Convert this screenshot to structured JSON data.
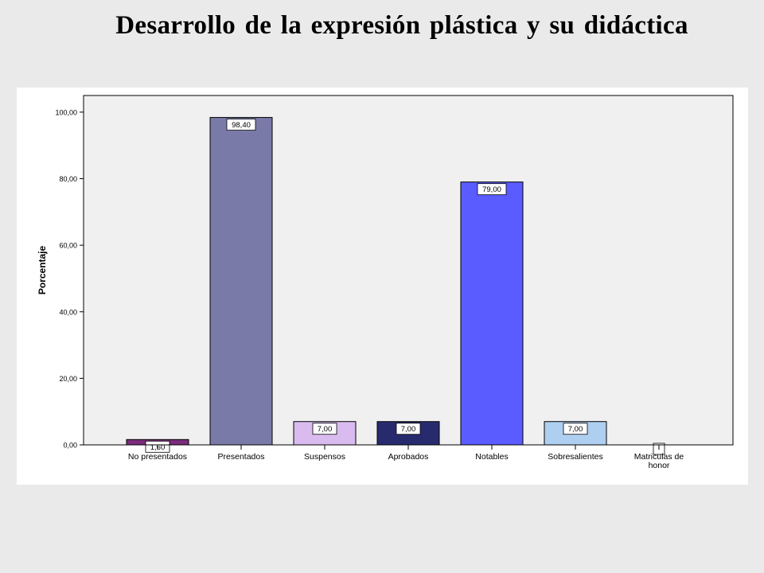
{
  "slide": {
    "title": "Desarrollo de la expresión plástica y su didáctica"
  },
  "chart_data": {
    "type": "bar",
    "title": "Desarrollo de la expresión plástica y su didáctica",
    "xlabel": "",
    "ylabel": "Porcentaje",
    "ylim": [
      0,
      105
    ],
    "yticks": [
      0,
      20,
      40,
      60,
      80,
      100
    ],
    "ytick_labels": [
      "0,00",
      "20,00",
      "40,00",
      "60,00",
      "80,00",
      "100,00"
    ],
    "categories": [
      "No presentados",
      "Presentados",
      "Suspensos",
      "Aprobados",
      "Notables",
      "Sobresalientes",
      "Matriculas de honor"
    ],
    "category_label_lines": [
      [
        "No presentados"
      ],
      [
        "Presentados"
      ],
      [
        "Suspensos"
      ],
      [
        "Aprobados"
      ],
      [
        "Notables"
      ],
      [
        "Sobresalientes"
      ],
      [
        "Matriculas de",
        "honor"
      ]
    ],
    "values": [
      1.6,
      98.4,
      7.0,
      7.0,
      79.0,
      7.0,
      0.0
    ],
    "value_labels": [
      "1,60",
      "98,40",
      "7,00",
      "7,00",
      "79,00",
      "7,00",
      ""
    ],
    "bar_colors": [
      "#7b2c7b",
      "#7a7aa8",
      "#d9bbef",
      "#272b6e",
      "#5a5cff",
      "#aecff0",
      "#ffffff"
    ],
    "plot_background": "#f0f0f0",
    "grid": false,
    "legend": "none"
  }
}
